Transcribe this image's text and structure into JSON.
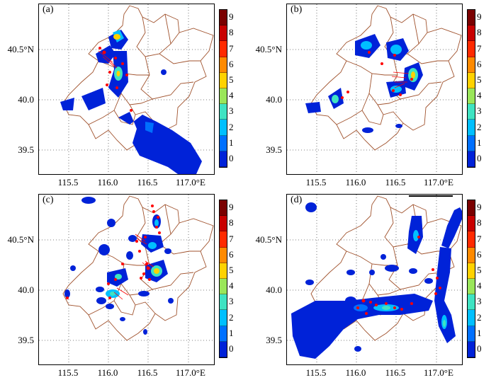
{
  "panels": [
    {
      "label": "(a)"
    },
    {
      "label": "(b)"
    },
    {
      "label": "(c)"
    },
    {
      "label": "(d)"
    }
  ],
  "axes": {
    "y_ticks": [
      "40.5°N",
      "40.0",
      "39.5"
    ],
    "x_ticks": [
      "115.5",
      "116.0",
      "116.5",
      "117.0°E"
    ]
  },
  "colorbar": {
    "levels": [
      "9",
      "8",
      "7",
      "6",
      "5",
      "4",
      "3",
      "2",
      "1",
      "0"
    ],
    "colors": [
      "#7a0000",
      "#c80000",
      "#ff2a00",
      "#ff8a00",
      "#ffd200",
      "#9ae65a",
      "#3fe3c2",
      "#00bfff",
      "#0070ff",
      "#0022d8"
    ]
  },
  "styles": {
    "boundary_color": "#a0522d",
    "stations_color": "#ff0000",
    "grid_color": "#555555"
  }
}
